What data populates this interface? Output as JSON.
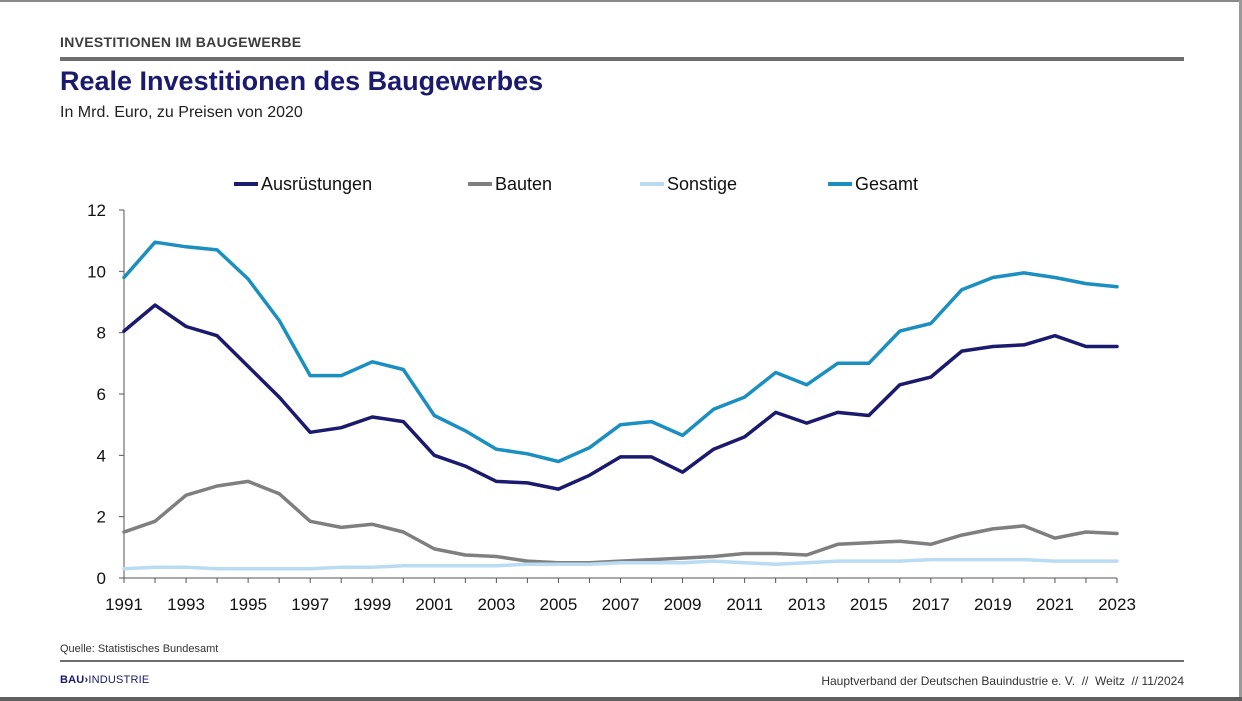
{
  "header": {
    "section": "INVESTITIONEN IM BAUGEWERBE",
    "title": "Reale Investitionen des Baugewerbes",
    "subtitle": "In Mrd. Euro, zu Preisen von 2020"
  },
  "footer": {
    "source": "Quelle: Statistisches Bundesamt",
    "logo_bold": "BAU",
    "logo_sep": "›",
    "logo_rest": "INDUSTRIE",
    "credit": "Hauptverband der Deutschen Bauindustrie e. V.  //  Weitz  // 11/2024"
  },
  "chart_data": {
    "type": "line",
    "x": [
      1991,
      1992,
      1993,
      1994,
      1995,
      1996,
      1997,
      1998,
      1999,
      2000,
      2001,
      2002,
      2003,
      2004,
      2005,
      2006,
      2007,
      2008,
      2009,
      2010,
      2011,
      2012,
      2013,
      2014,
      2015,
      2016,
      2017,
      2018,
      2019,
      2020,
      2021,
      2022,
      2023
    ],
    "x_tick_labels": [
      "1991",
      "1993",
      "1995",
      "1997",
      "1999",
      "2001",
      "2003",
      "2005",
      "2007",
      "2009",
      "2011",
      "2013",
      "2015",
      "2017",
      "2019",
      "2021",
      "2023"
    ],
    "ylim": [
      0,
      12
    ],
    "y_ticks": [
      0,
      2,
      4,
      6,
      8,
      10,
      12
    ],
    "grid": false,
    "legend_position": "top",
    "series": [
      {
        "name": "Ausrüstungen",
        "color": "#1a1a6e",
        "values": [
          8.05,
          8.9,
          8.2,
          7.9,
          6.9,
          5.9,
          4.75,
          4.9,
          5.25,
          5.1,
          4.0,
          3.65,
          3.15,
          3.1,
          2.9,
          3.35,
          3.95,
          3.95,
          3.45,
          4.2,
          4.6,
          5.4,
          5.05,
          5.4,
          5.3,
          6.3,
          6.55,
          7.4,
          7.55,
          7.6,
          7.9,
          7.55,
          7.55
        ]
      },
      {
        "name": "Bauten",
        "color": "#7f7f7f",
        "values": [
          1.5,
          1.85,
          2.7,
          3.0,
          3.15,
          2.75,
          1.85,
          1.65,
          1.75,
          1.5,
          0.95,
          0.75,
          0.7,
          0.55,
          0.5,
          0.5,
          0.55,
          0.6,
          0.65,
          0.7,
          0.8,
          0.8,
          0.75,
          1.1,
          1.15,
          1.2,
          1.1,
          1.4,
          1.6,
          1.7,
          1.3,
          1.5,
          1.45
        ]
      },
      {
        "name": "Sonstige",
        "color": "#b9dcf2",
        "values": [
          0.3,
          0.35,
          0.35,
          0.3,
          0.3,
          0.3,
          0.3,
          0.35,
          0.35,
          0.4,
          0.4,
          0.4,
          0.4,
          0.45,
          0.45,
          0.45,
          0.5,
          0.5,
          0.5,
          0.55,
          0.5,
          0.45,
          0.5,
          0.55,
          0.55,
          0.55,
          0.6,
          0.6,
          0.6,
          0.6,
          0.55,
          0.55,
          0.55
        ]
      },
      {
        "name": "Gesamt",
        "color": "#1b8fc0",
        "values": [
          9.8,
          10.95,
          10.8,
          10.7,
          9.75,
          8.4,
          6.6,
          6.6,
          7.05,
          6.8,
          5.3,
          4.8,
          4.2,
          4.05,
          3.8,
          4.25,
          5.0,
          5.1,
          4.65,
          5.5,
          5.9,
          6.7,
          6.3,
          7.0,
          7.0,
          8.05,
          8.3,
          9.4,
          9.8,
          9.95,
          9.8,
          9.6,
          9.5
        ]
      }
    ]
  }
}
